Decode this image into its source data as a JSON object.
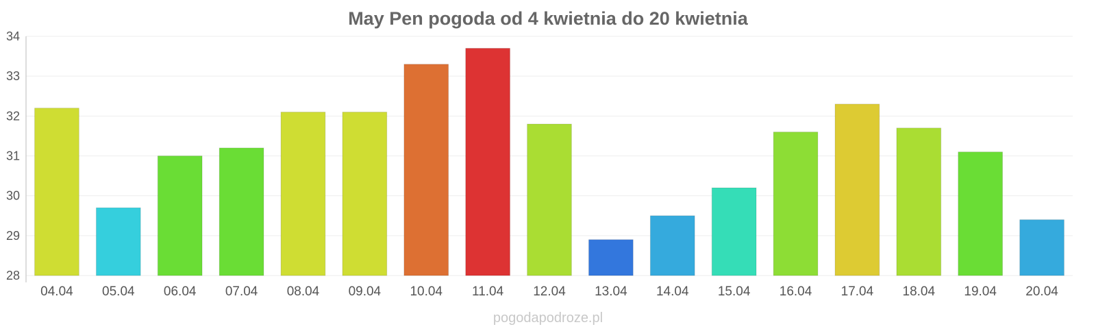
{
  "chart_data": {
    "type": "bar",
    "title": "May Pen pogoda od 4 kwietnia do 20 kwietnia",
    "xlabel": "",
    "ylabel": "",
    "ylim": [
      28,
      34
    ],
    "yticks": [
      28,
      29,
      30,
      31,
      32,
      33,
      34
    ],
    "grid": true,
    "legend": "none",
    "categories": [
      "04.04",
      "05.04",
      "06.04",
      "07.04",
      "08.04",
      "09.04",
      "10.04",
      "11.04",
      "12.04",
      "13.04",
      "14.04",
      "15.04",
      "16.04",
      "17.04",
      "18.04",
      "19.04",
      "20.04"
    ],
    "values": [
      32.2,
      29.7,
      31.0,
      31.2,
      32.1,
      32.1,
      33.3,
      33.7,
      31.8,
      28.9,
      29.5,
      30.2,
      31.6,
      32.3,
      31.7,
      31.1,
      29.4
    ],
    "colors": [
      "#cfdd33",
      "#35cfdd",
      "#6add35",
      "#6add35",
      "#cfdd33",
      "#cfdd33",
      "#dd7033",
      "#dd3333",
      "#aadd33",
      "#3377dd",
      "#35aadd",
      "#35ddb7",
      "#8ddd35",
      "#ddcb33",
      "#aadd33",
      "#6add35",
      "#35aadd"
    ]
  },
  "watermark": "pogodapodroze.pl"
}
